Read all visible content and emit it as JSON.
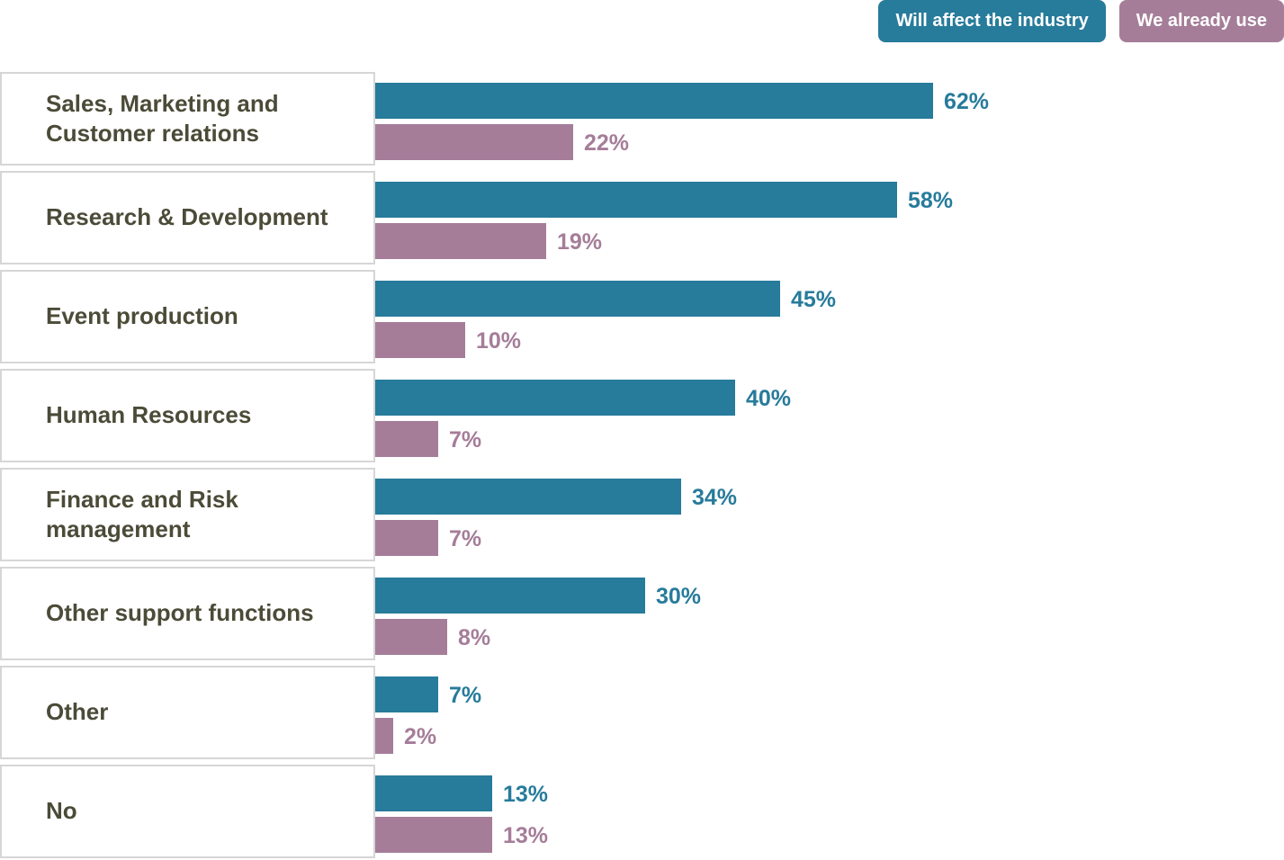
{
  "legend": [
    {
      "label": "Will affect the industry",
      "color": "#277b9b"
    },
    {
      "label": "We already use",
      "color": "#a57d99"
    }
  ],
  "chart_data": {
    "type": "bar",
    "orientation": "horizontal",
    "categories": [
      "Sales, Marketing and Customer relations",
      "Research & Development",
      "Event production",
      "Human Resources",
      "Finance and Risk management",
      "Other support functions",
      "Other",
      "No"
    ],
    "series": [
      {
        "name": "Will affect the industry",
        "color": "#277b9b",
        "values": [
          62,
          58,
          45,
          40,
          34,
          30,
          7,
          13
        ]
      },
      {
        "name": "We already use",
        "color": "#a57d99",
        "values": [
          22,
          19,
          10,
          7,
          7,
          8,
          2,
          13
        ]
      }
    ],
    "value_suffix": "%",
    "legend_position": "top-right",
    "grid": false
  }
}
